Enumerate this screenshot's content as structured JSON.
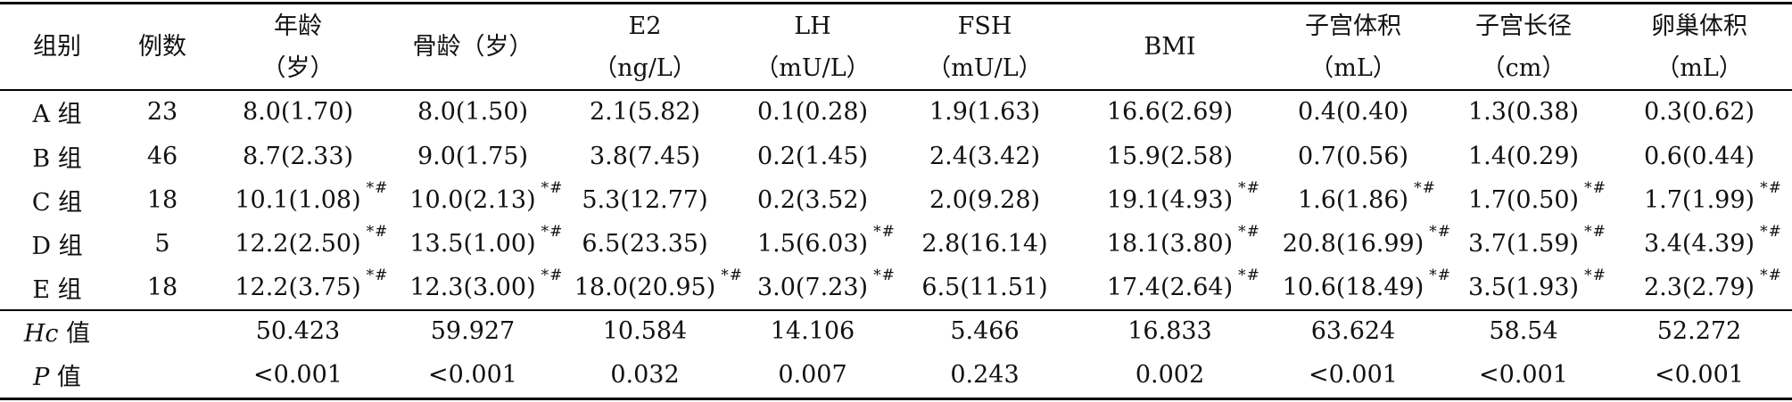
{
  "table": {
    "headers": [
      {
        "line1": "组别",
        "line2": ""
      },
      {
        "line1": "例数",
        "line2": ""
      },
      {
        "line1": "年龄",
        "line2": "（岁）"
      },
      {
        "line1": "骨龄（岁）",
        "line2": ""
      },
      {
        "line1": "E2",
        "line2": "（ng/L）"
      },
      {
        "line1": "LH",
        "line2": "（mU/L）"
      },
      {
        "line1": "FSH",
        "line2": "（mU/L）"
      },
      {
        "line1": "BMI",
        "line2": ""
      },
      {
        "line1": "子宫体积",
        "line2": "（mL）"
      },
      {
        "line1": "子宫长径",
        "line2": "（cm）"
      },
      {
        "line1": "卵巢体积",
        "line2": "（mL）"
      }
    ],
    "rows": [
      {
        "group": "A 组",
        "n": "23",
        "cells": [
          {
            "v": "8.0(1.70)",
            "s": ""
          },
          {
            "v": "8.0(1.50)",
            "s": ""
          },
          {
            "v": "2.1(5.82)",
            "s": ""
          },
          {
            "v": "0.1(0.28)",
            "s": ""
          },
          {
            "v": "1.9(1.63)",
            "s": ""
          },
          {
            "v": "16.6(2.69)",
            "s": ""
          },
          {
            "v": "0.4(0.40)",
            "s": ""
          },
          {
            "v": "1.3(0.38)",
            "s": ""
          },
          {
            "v": "0.3(0.62)",
            "s": ""
          }
        ]
      },
      {
        "group": "B 组",
        "n": "46",
        "cells": [
          {
            "v": "8.7(2.33)",
            "s": ""
          },
          {
            "v": "9.0(1.75)",
            "s": ""
          },
          {
            "v": "3.8(7.45)",
            "s": ""
          },
          {
            "v": "0.2(1.45)",
            "s": ""
          },
          {
            "v": "2.4(3.42)",
            "s": ""
          },
          {
            "v": "15.9(2.58)",
            "s": ""
          },
          {
            "v": "0.7(0.56)",
            "s": ""
          },
          {
            "v": "1.4(0.29)",
            "s": ""
          },
          {
            "v": "0.6(0.44)",
            "s": ""
          }
        ]
      },
      {
        "group": "C 组",
        "n": "18",
        "cells": [
          {
            "v": "10.1(1.08)",
            "s": "*#"
          },
          {
            "v": "10.0(2.13)",
            "s": "*#"
          },
          {
            "v": "5.3(12.77)",
            "s": ""
          },
          {
            "v": "0.2(3.52)",
            "s": ""
          },
          {
            "v": "2.0(9.28)",
            "s": ""
          },
          {
            "v": "19.1(4.93)",
            "s": "*#"
          },
          {
            "v": "1.6(1.86)",
            "s": "*#"
          },
          {
            "v": "1.7(0.50)",
            "s": "*#"
          },
          {
            "v": "1.7(1.99)",
            "s": "*#"
          }
        ]
      },
      {
        "group": "D 组",
        "n": "5",
        "cells": [
          {
            "v": "12.2(2.50)",
            "s": "*#"
          },
          {
            "v": "13.5(1.00)",
            "s": "*#"
          },
          {
            "v": "6.5(23.35)",
            "s": ""
          },
          {
            "v": "1.5(6.03)",
            "s": "*#"
          },
          {
            "v": "2.8(16.14)",
            "s": ""
          },
          {
            "v": "18.1(3.80)",
            "s": "*#"
          },
          {
            "v": "20.8(16.99)",
            "s": "*#"
          },
          {
            "v": "3.7(1.59)",
            "s": "*#"
          },
          {
            "v": "3.4(4.39)",
            "s": "*#"
          }
        ]
      },
      {
        "group": "E 组",
        "n": "18",
        "cells": [
          {
            "v": "12.2(3.75)",
            "s": "*#"
          },
          {
            "v": "12.3(3.00)",
            "s": "*#"
          },
          {
            "v": "18.0(20.95)",
            "s": "*#"
          },
          {
            "v": "3.0(7.23)",
            "s": "*#"
          },
          {
            "v": "6.5(11.51)",
            "s": ""
          },
          {
            "v": "17.4(2.64)",
            "s": "*#"
          },
          {
            "v": "10.6(18.49)",
            "s": "*#"
          },
          {
            "v": "3.5(1.93)",
            "s": "*#"
          },
          {
            "v": "2.3(2.79)",
            "s": "*#"
          }
        ]
      }
    ],
    "stats": [
      {
        "label_italic": "Hc",
        "label_rest": " 值",
        "values": [
          "50.423",
          "59.927",
          "10.584",
          "14.106",
          "5.466",
          "16.833",
          "63.624",
          "58.54",
          "52.272"
        ]
      },
      {
        "label_italic": "P",
        "label_rest": " 值",
        "values": [
          "<0.001",
          "<0.001",
          "0.032",
          "0.007",
          "0.243",
          "0.002",
          "<0.001",
          "<0.001",
          "<0.001"
        ]
      }
    ]
  }
}
